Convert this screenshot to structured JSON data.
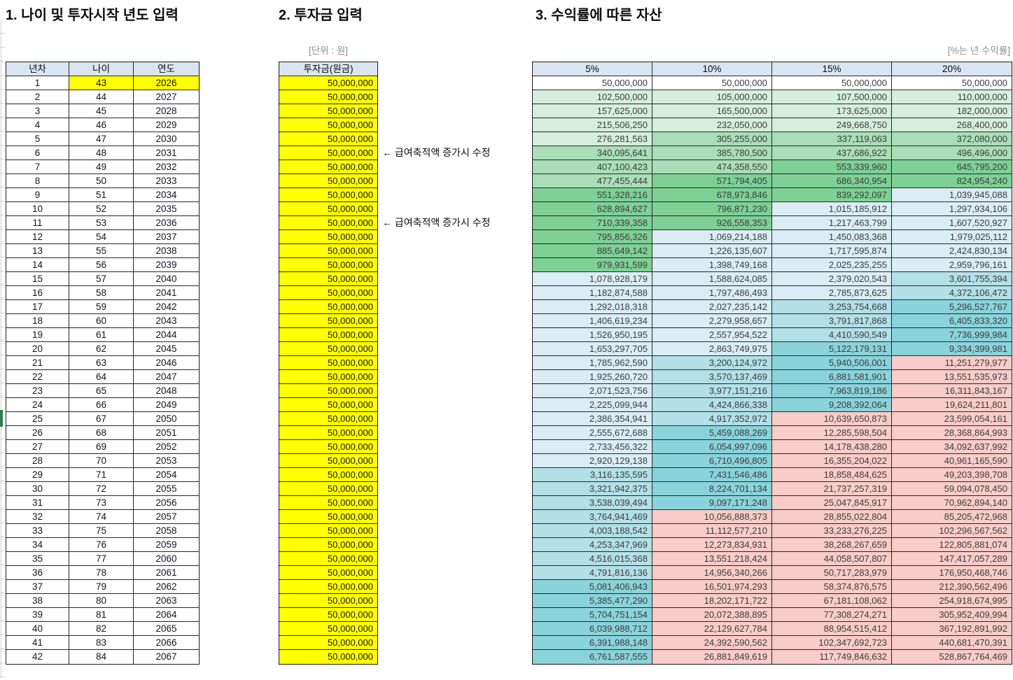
{
  "sections": {
    "left": {
      "title": "1. 나이 및 투자시작 년도 입력",
      "columns": [
        "년차",
        "나이",
        "연도"
      ],
      "rows": [
        [
          1,
          43,
          2026
        ],
        [
          2,
          44,
          2027
        ],
        [
          3,
          45,
          2028
        ],
        [
          4,
          46,
          2029
        ],
        [
          5,
          47,
          2030
        ],
        [
          6,
          48,
          2031
        ],
        [
          7,
          49,
          2032
        ],
        [
          8,
          50,
          2033
        ],
        [
          9,
          51,
          2034
        ],
        [
          10,
          52,
          2035
        ],
        [
          11,
          53,
          2036
        ],
        [
          12,
          54,
          2037
        ],
        [
          13,
          55,
          2038
        ],
        [
          14,
          56,
          2039
        ],
        [
          15,
          57,
          2040
        ],
        [
          16,
          58,
          2041
        ],
        [
          17,
          59,
          2042
        ],
        [
          18,
          60,
          2043
        ],
        [
          19,
          61,
          2044
        ],
        [
          20,
          62,
          2045
        ],
        [
          21,
          63,
          2046
        ],
        [
          22,
          64,
          2047
        ],
        [
          23,
          65,
          2048
        ],
        [
          24,
          66,
          2049
        ],
        [
          25,
          67,
          2050
        ],
        [
          26,
          68,
          2051
        ],
        [
          27,
          69,
          2052
        ],
        [
          28,
          70,
          2053
        ],
        [
          29,
          71,
          2054
        ],
        [
          30,
          72,
          2055
        ],
        [
          31,
          73,
          2056
        ],
        [
          32,
          74,
          2057
        ],
        [
          33,
          75,
          2058
        ],
        [
          34,
          76,
          2059
        ],
        [
          35,
          77,
          2060
        ],
        [
          36,
          78,
          2061
        ],
        [
          37,
          79,
          2062
        ],
        [
          38,
          80,
          2063
        ],
        [
          39,
          81,
          2064
        ],
        [
          40,
          82,
          2065
        ],
        [
          41,
          83,
          2066
        ],
        [
          42,
          84,
          2067
        ]
      ],
      "highlighted_first_row_cells": [
        "나이",
        "연도"
      ]
    },
    "middle": {
      "title": "2. 투자금 입력",
      "unit_note": "[단위 : 원]",
      "column": "투자금(원금)",
      "values": [
        "50,000,000",
        "50,000,000",
        "50,000,000",
        "50,000,000",
        "50,000,000",
        "50,000,000",
        "50,000,000",
        "50,000,000",
        "50,000,000",
        "50,000,000",
        "50,000,000",
        "50,000,000",
        "50,000,000",
        "50,000,000",
        "50,000,000",
        "50,000,000",
        "50,000,000",
        "50,000,000",
        "50,000,000",
        "50,000,000",
        "50,000,000",
        "50,000,000",
        "50,000,000",
        "50,000,000",
        "50,000,000",
        "50,000,000",
        "50,000,000",
        "50,000,000",
        "50,000,000",
        "50,000,000",
        "50,000,000",
        "50,000,000",
        "50,000,000",
        "50,000,000",
        "50,000,000",
        "50,000,000",
        "50,000,000",
        "50,000,000",
        "50,000,000",
        "50,000,000",
        "50,000,000",
        "50,000,000"
      ],
      "annotations": [
        {
          "row": 6,
          "text": "← 급여축적액 증가시 수정"
        },
        {
          "row": 11,
          "text": "← 급여축적액 증가시 수정"
        }
      ]
    },
    "right": {
      "title": "3. 수익률에 따른 자산",
      "unit_note": "[%는 년 수익률]",
      "columns": [
        "5%",
        "10%",
        "15%",
        "20%"
      ],
      "rows": [
        [
          "50,000,000",
          "50,000,000",
          "50,000,000",
          "50,000,000"
        ],
        [
          "102,500,000",
          "105,000,000",
          "107,500,000",
          "110,000,000"
        ],
        [
          "157,625,000",
          "165,500,000",
          "173,625,000",
          "182,000,000"
        ],
        [
          "215,506,250",
          "232,050,000",
          "249,668,750",
          "268,400,000"
        ],
        [
          "276,281,563",
          "305,255,000",
          "337,119,063",
          "372,080,000"
        ],
        [
          "340,095,641",
          "385,780,500",
          "437,686,922",
          "496,496,000"
        ],
        [
          "407,100,423",
          "474,358,550",
          "553,339,960",
          "645,795,200"
        ],
        [
          "477,455,444",
          "571,794,405",
          "686,340,954",
          "824,954,240"
        ],
        [
          "551,328,216",
          "678,973,846",
          "839,292,097",
          "1,039,945,088"
        ],
        [
          "628,894,627",
          "796,871,230",
          "1,015,185,912",
          "1,297,934,106"
        ],
        [
          "710,339,358",
          "926,558,353",
          "1,217,463,799",
          "1,607,520,927"
        ],
        [
          "795,856,326",
          "1,069,214,188",
          "1,450,083,368",
          "1,979,025,112"
        ],
        [
          "885,649,142",
          "1,226,135,607",
          "1,717,595,874",
          "2,424,830,134"
        ],
        [
          "979,931,599",
          "1,398,749,168",
          "2,025,235,255",
          "2,959,796,161"
        ],
        [
          "1,078,928,179",
          "1,588,624,085",
          "2,379,020,543",
          "3,601,755,394"
        ],
        [
          "1,182,874,588",
          "1,797,486,493",
          "2,785,873,625",
          "4,372,106,472"
        ],
        [
          "1,292,018,318",
          "2,027,235,142",
          "3,253,754,668",
          "5,296,527,767"
        ],
        [
          "1,406,619,234",
          "2,279,958,657",
          "3,791,817,868",
          "6,405,833,320"
        ],
        [
          "1,526,950,195",
          "2,557,954,522",
          "4,410,590,549",
          "7,736,999,984"
        ],
        [
          "1,653,297,705",
          "2,863,749,975",
          "5,122,179,131",
          "9,334,399,981"
        ],
        [
          "1,785,962,590",
          "3,200,124,972",
          "5,940,506,001",
          "11,251,279,977"
        ],
        [
          "1,925,260,720",
          "3,570,137,469",
          "6,881,581,901",
          "13,551,535,973"
        ],
        [
          "2,071,523,756",
          "3,977,151,216",
          "7,963,819,186",
          "16,311,843,167"
        ],
        [
          "2,225,099,944",
          "4,424,866,338",
          "9,208,392,064",
          "19,624,211,801"
        ],
        [
          "2,386,354,941",
          "4,917,352,972",
          "10,639,650,873",
          "23,599,054,161"
        ],
        [
          "2,555,672,688",
          "5,459,088,269",
          "12,285,598,504",
          "28,368,864,993"
        ],
        [
          "2,733,456,322",
          "6,054,997,096",
          "14,178,438,280",
          "34,092,637,992"
        ],
        [
          "2,920,129,138",
          "6,710,496,805",
          "16,355,204,022",
          "40,961,165,590"
        ],
        [
          "3,116,135,595",
          "7,431,546,486",
          "18,858,484,625",
          "49,203,398,708"
        ],
        [
          "3,321,942,375",
          "8,224,701,134",
          "21,737,257,319",
          "59,094,078,450"
        ],
        [
          "3,538,039,494",
          "9,097,171,248",
          "25,047,845,917",
          "70,962,894,140"
        ],
        [
          "3,764,941,469",
          "10,056,888,373",
          "28,855,022,804",
          "85,205,472,968"
        ],
        [
          "4,003,188,542",
          "11,112,577,210",
          "33,233,276,225",
          "102,296,567,562"
        ],
        [
          "4,253,347,969",
          "12,273,834,931",
          "38,268,267,659",
          "122,805,881,074"
        ],
        [
          "4,516,015,368",
          "13,551,218,424",
          "44,058,507,807",
          "147,417,057,289"
        ],
        [
          "4,791,816,136",
          "14,956,340,266",
          "50,717,283,979",
          "176,950,468,746"
        ],
        [
          "5,081,406,943",
          "16,501,974,293",
          "58,374,876,575",
          "212,390,562,496"
        ],
        [
          "5,385,477,290",
          "18,202,171,722",
          "67,181,108,062",
          "254,918,674,995"
        ],
        [
          "5,704,751,154",
          "20,072,388,895",
          "77,308,274,271",
          "305,952,409,994"
        ],
        [
          "6,039,988,712",
          "22,129,627,784",
          "88,954,515,412",
          "367,192,891,992"
        ],
        [
          "6,391,988,148",
          "24,392,590,562",
          "102,347,692,723",
          "440,681,470,391"
        ],
        [
          "6,761,587,555",
          "26,881,849,619",
          "117,749,846,632",
          "528,867,764,469"
        ]
      ]
    }
  },
  "colors": {
    "header_fill": "#dbe5f1",
    "input_fill": "#ffff00",
    "selection_accent": "#2f7d4b",
    "value_bands": [
      {
        "max_exclusive": 100000000,
        "color": "#ffffff"
      },
      {
        "max_exclusive": 300000000,
        "color": "#d6eedd"
      },
      {
        "max_exclusive": 500000000,
        "color": "#a9deb8"
      },
      {
        "max_exclusive": 1000000000,
        "color": "#7ed095"
      },
      {
        "max_exclusive": 3000000000,
        "color": "#daedf4"
      },
      {
        "max_exclusive": 5000000000,
        "color": "#b2e0e6"
      },
      {
        "max_exclusive": 10000000000,
        "color": "#8bd3da"
      },
      {
        "max_exclusive": null,
        "color": "#f8ccc8"
      }
    ]
  }
}
